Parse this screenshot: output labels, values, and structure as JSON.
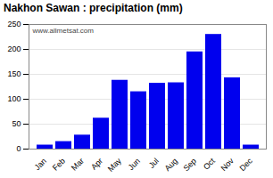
{
  "chart_data": {
    "type": "bar",
    "title": "Nakhon Sawan : precipitation (mm)",
    "categories": [
      "Jan",
      "Feb",
      "Mar",
      "Apr",
      "May",
      "Jun",
      "Jul",
      "Aug",
      "Sep",
      "Oct",
      "Nov",
      "Dec"
    ],
    "values": [
      8,
      15,
      28,
      62,
      138,
      115,
      132,
      133,
      195,
      230,
      143,
      8
    ],
    "color": "#0000ee",
    "ylim": [
      0,
      250
    ],
    "yticks": [
      0,
      50,
      100,
      150,
      200,
      250
    ],
    "grid": true,
    "annotations": [
      "www.allmetsat.com"
    ]
  }
}
